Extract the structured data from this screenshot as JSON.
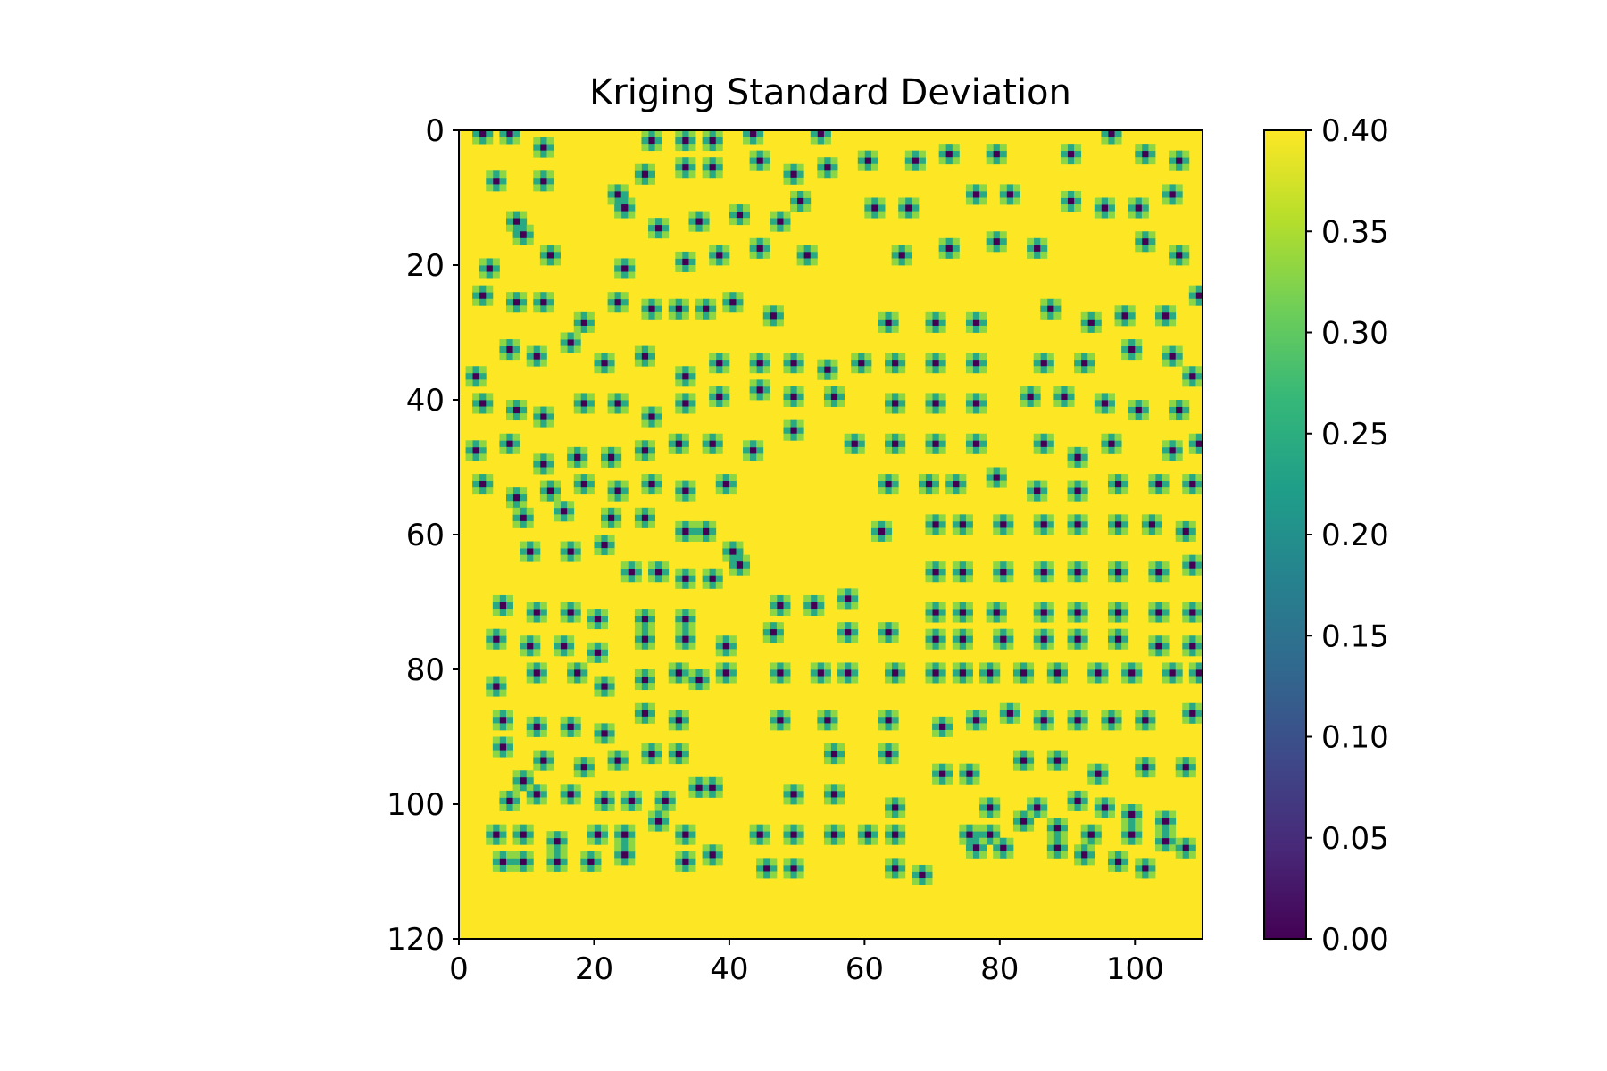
{
  "chart_data": {
    "type": "heatmap",
    "title": "Kriging Standard Deviation",
    "xlabel": "",
    "ylabel": "",
    "n_cols": 110,
    "n_rows": 120,
    "xlim": [
      0,
      110
    ],
    "ylim": [
      120,
      0
    ],
    "xticks": [
      0,
      20,
      40,
      60,
      80,
      100
    ],
    "yticks": [
      0,
      20,
      40,
      60,
      80,
      100,
      120
    ],
    "background_value": 0.4,
    "colormap": "viridis",
    "colormap_stops": [
      "#440154",
      "#482878",
      "#3e4989",
      "#31688e",
      "#26828e",
      "#1f9e89",
      "#35b779",
      "#6ece58",
      "#b5de2b",
      "#fde725"
    ],
    "colorbar": {
      "vmin": 0.0,
      "vmax": 0.4,
      "ticks": [
        "0.00",
        "0.05",
        "0.10",
        "0.15",
        "0.20",
        "0.25",
        "0.30",
        "0.35",
        "0.40"
      ]
    },
    "sample_points": [
      [
        3,
        0
      ],
      [
        7,
        0
      ],
      [
        12,
        2
      ],
      [
        28,
        1
      ],
      [
        33,
        1
      ],
      [
        37,
        1
      ],
      [
        43,
        0
      ],
      [
        53,
        0
      ],
      [
        5,
        7
      ],
      [
        12,
        7
      ],
      [
        23,
        9
      ],
      [
        27,
        6
      ],
      [
        33,
        5
      ],
      [
        37,
        5
      ],
      [
        44,
        4
      ],
      [
        49,
        6
      ],
      [
        54,
        5
      ],
      [
        60,
        4
      ],
      [
        67,
        4
      ],
      [
        72,
        3
      ],
      [
        79,
        3
      ],
      [
        90,
        3
      ],
      [
        96,
        0
      ],
      [
        101,
        3
      ],
      [
        106,
        4
      ],
      [
        8,
        13
      ],
      [
        24,
        11
      ],
      [
        29,
        14
      ],
      [
        35,
        13
      ],
      [
        41,
        12
      ],
      [
        47,
        13
      ],
      [
        50,
        10
      ],
      [
        61,
        11
      ],
      [
        66,
        11
      ],
      [
        76,
        9
      ],
      [
        81,
        9
      ],
      [
        90,
        10
      ],
      [
        95,
        11
      ],
      [
        100,
        11
      ],
      [
        105,
        9
      ],
      [
        9,
        15
      ],
      [
        4,
        20
      ],
      [
        13,
        18
      ],
      [
        24,
        20
      ],
      [
        33,
        19
      ],
      [
        38,
        18
      ],
      [
        44,
        17
      ],
      [
        51,
        18
      ],
      [
        65,
        18
      ],
      [
        72,
        17
      ],
      [
        79,
        16
      ],
      [
        85,
        17
      ],
      [
        101,
        16
      ],
      [
        106,
        18
      ],
      [
        3,
        24
      ],
      [
        8,
        25
      ],
      [
        12,
        25
      ],
      [
        18,
        28
      ],
      [
        23,
        25
      ],
      [
        28,
        26
      ],
      [
        32,
        26
      ],
      [
        36,
        26
      ],
      [
        40,
        25
      ],
      [
        46,
        27
      ],
      [
        63,
        28
      ],
      [
        70,
        28
      ],
      [
        76,
        28
      ],
      [
        87,
        26
      ],
      [
        93,
        28
      ],
      [
        98,
        27
      ],
      [
        104,
        27
      ],
      [
        109,
        24
      ],
      [
        2,
        36
      ],
      [
        7,
        32
      ],
      [
        11,
        33
      ],
      [
        16,
        31
      ],
      [
        21,
        34
      ],
      [
        27,
        33
      ],
      [
        33,
        36
      ],
      [
        38,
        34
      ],
      [
        44,
        34
      ],
      [
        49,
        34
      ],
      [
        54,
        35
      ],
      [
        59,
        34
      ],
      [
        64,
        34
      ],
      [
        70,
        34
      ],
      [
        76,
        34
      ],
      [
        86,
        34
      ],
      [
        92,
        34
      ],
      [
        99,
        32
      ],
      [
        105,
        33
      ],
      [
        108,
        36
      ],
      [
        3,
        40
      ],
      [
        8,
        41
      ],
      [
        12,
        42
      ],
      [
        18,
        40
      ],
      [
        23,
        40
      ],
      [
        28,
        42
      ],
      [
        33,
        40
      ],
      [
        38,
        39
      ],
      [
        44,
        38
      ],
      [
        49,
        39
      ],
      [
        55,
        39
      ],
      [
        64,
        40
      ],
      [
        70,
        40
      ],
      [
        76,
        40
      ],
      [
        84,
        39
      ],
      [
        89,
        39
      ],
      [
        95,
        40
      ],
      [
        100,
        41
      ],
      [
        106,
        41
      ],
      [
        2,
        47
      ],
      [
        7,
        46
      ],
      [
        12,
        49
      ],
      [
        17,
        48
      ],
      [
        22,
        48
      ],
      [
        27,
        47
      ],
      [
        32,
        46
      ],
      [
        37,
        46
      ],
      [
        43,
        47
      ],
      [
        49,
        44
      ],
      [
        58,
        46
      ],
      [
        64,
        46
      ],
      [
        70,
        46
      ],
      [
        76,
        46
      ],
      [
        86,
        46
      ],
      [
        91,
        48
      ],
      [
        96,
        46
      ],
      [
        105,
        47
      ],
      [
        109,
        46
      ],
      [
        3,
        52
      ],
      [
        8,
        54
      ],
      [
        13,
        53
      ],
      [
        18,
        52
      ],
      [
        23,
        53
      ],
      [
        28,
        52
      ],
      [
        33,
        53
      ],
      [
        39,
        52
      ],
      [
        63,
        52
      ],
      [
        69,
        52
      ],
      [
        73,
        52
      ],
      [
        79,
        51
      ],
      [
        85,
        53
      ],
      [
        91,
        53
      ],
      [
        97,
        52
      ],
      [
        103,
        52
      ],
      [
        108,
        52
      ],
      [
        9,
        57
      ],
      [
        15,
        56
      ],
      [
        22,
        57
      ],
      [
        27,
        57
      ],
      [
        33,
        59
      ],
      [
        36,
        59
      ],
      [
        40,
        62
      ],
      [
        62,
        59
      ],
      [
        70,
        58
      ],
      [
        74,
        58
      ],
      [
        80,
        58
      ],
      [
        86,
        58
      ],
      [
        91,
        58
      ],
      [
        97,
        58
      ],
      [
        102,
        58
      ],
      [
        107,
        59
      ],
      [
        10,
        62
      ],
      [
        16,
        62
      ],
      [
        21,
        61
      ],
      [
        25,
        65
      ],
      [
        29,
        65
      ],
      [
        33,
        66
      ],
      [
        37,
        66
      ],
      [
        41,
        64
      ],
      [
        70,
        65
      ],
      [
        74,
        65
      ],
      [
        80,
        65
      ],
      [
        86,
        65
      ],
      [
        91,
        65
      ],
      [
        97,
        65
      ],
      [
        103,
        65
      ],
      [
        108,
        64
      ],
      [
        6,
        70
      ],
      [
        11,
        71
      ],
      [
        16,
        71
      ],
      [
        20,
        72
      ],
      [
        27,
        72
      ],
      [
        33,
        72
      ],
      [
        47,
        70
      ],
      [
        52,
        70
      ],
      [
        57,
        69
      ],
      [
        70,
        71
      ],
      [
        74,
        71
      ],
      [
        79,
        71
      ],
      [
        86,
        71
      ],
      [
        91,
        71
      ],
      [
        97,
        71
      ],
      [
        103,
        71
      ],
      [
        108,
        71
      ],
      [
        5,
        75
      ],
      [
        10,
        76
      ],
      [
        15,
        76
      ],
      [
        20,
        77
      ],
      [
        27,
        75
      ],
      [
        33,
        75
      ],
      [
        39,
        76
      ],
      [
        46,
        74
      ],
      [
        57,
        74
      ],
      [
        63,
        74
      ],
      [
        70,
        75
      ],
      [
        74,
        75
      ],
      [
        80,
        75
      ],
      [
        86,
        75
      ],
      [
        91,
        75
      ],
      [
        97,
        75
      ],
      [
        103,
        76
      ],
      [
        108,
        76
      ],
      [
        5,
        82
      ],
      [
        11,
        80
      ],
      [
        17,
        80
      ],
      [
        21,
        82
      ],
      [
        27,
        81
      ],
      [
        32,
        80
      ],
      [
        35,
        81
      ],
      [
        39,
        80
      ],
      [
        47,
        80
      ],
      [
        53,
        80
      ],
      [
        57,
        80
      ],
      [
        64,
        80
      ],
      [
        70,
        80
      ],
      [
        74,
        80
      ],
      [
        78,
        80
      ],
      [
        83,
        80
      ],
      [
        88,
        80
      ],
      [
        94,
        80
      ],
      [
        99,
        80
      ],
      [
        105,
        80
      ],
      [
        109,
        80
      ],
      [
        6,
        87
      ],
      [
        11,
        88
      ],
      [
        16,
        88
      ],
      [
        21,
        89
      ],
      [
        27,
        86
      ],
      [
        32,
        87
      ],
      [
        47,
        87
      ],
      [
        54,
        87
      ],
      [
        63,
        87
      ],
      [
        71,
        88
      ],
      [
        76,
        87
      ],
      [
        81,
        86
      ],
      [
        86,
        87
      ],
      [
        91,
        87
      ],
      [
        96,
        87
      ],
      [
        101,
        87
      ],
      [
        108,
        86
      ],
      [
        6,
        91
      ],
      [
        9,
        96
      ],
      [
        12,
        93
      ],
      [
        18,
        94
      ],
      [
        23,
        93
      ],
      [
        28,
        92
      ],
      [
        32,
        92
      ],
      [
        55,
        92
      ],
      [
        63,
        92
      ],
      [
        71,
        95
      ],
      [
        75,
        95
      ],
      [
        83,
        93
      ],
      [
        88,
        93
      ],
      [
        94,
        95
      ],
      [
        101,
        94
      ],
      [
        107,
        94
      ],
      [
        7,
        99
      ],
      [
        11,
        98
      ],
      [
        16,
        98
      ],
      [
        21,
        99
      ],
      [
        25,
        99
      ],
      [
        30,
        99
      ],
      [
        35,
        97
      ],
      [
        37,
        97
      ],
      [
        49,
        98
      ],
      [
        55,
        98
      ],
      [
        64,
        100
      ],
      [
        78,
        100
      ],
      [
        85,
        100
      ],
      [
        91,
        99
      ],
      [
        95,
        100
      ],
      [
        99,
        101
      ],
      [
        104,
        102
      ],
      [
        5,
        104
      ],
      [
        9,
        104
      ],
      [
        14,
        105
      ],
      [
        20,
        104
      ],
      [
        24,
        104
      ],
      [
        29,
        102
      ],
      [
        33,
        104
      ],
      [
        44,
        104
      ],
      [
        49,
        104
      ],
      [
        55,
        104
      ],
      [
        60,
        104
      ],
      [
        64,
        104
      ],
      [
        75,
        104
      ],
      [
        78,
        104
      ],
      [
        83,
        102
      ],
      [
        88,
        103
      ],
      [
        93,
        104
      ],
      [
        99,
        104
      ],
      [
        104,
        105
      ],
      [
        6,
        108
      ],
      [
        9,
        108
      ],
      [
        14,
        108
      ],
      [
        19,
        108
      ],
      [
        24,
        107
      ],
      [
        33,
        108
      ],
      [
        37,
        107
      ],
      [
        45,
        109
      ],
      [
        49,
        109
      ],
      [
        64,
        109
      ],
      [
        68,
        110
      ],
      [
        76,
        106
      ],
      [
        80,
        106
      ],
      [
        88,
        106
      ],
      [
        92,
        107
      ],
      [
        97,
        108
      ],
      [
        101,
        109
      ],
      [
        107,
        106
      ]
    ]
  }
}
